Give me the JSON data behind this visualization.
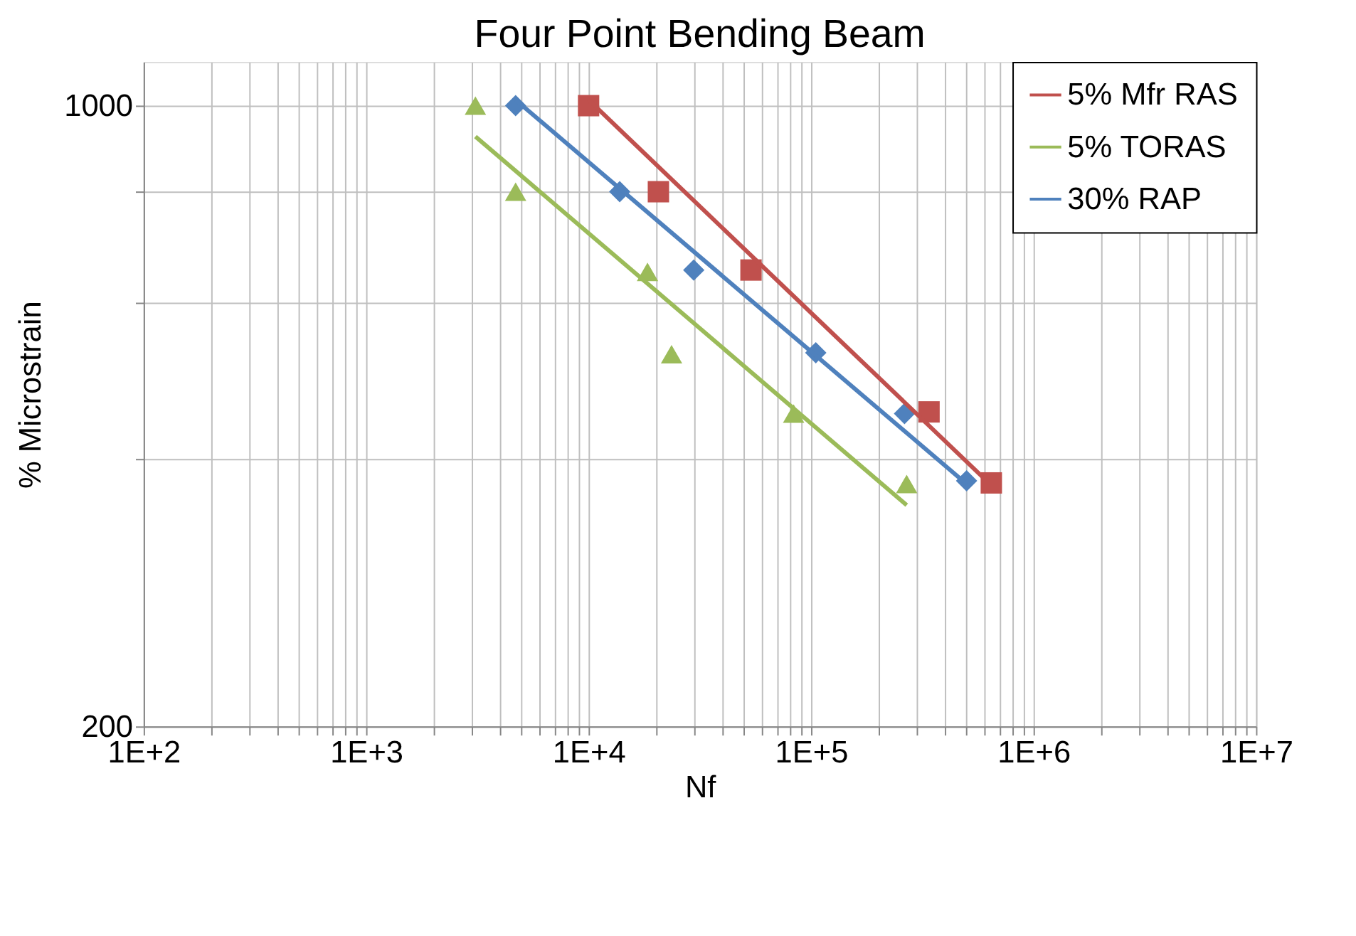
{
  "chart_data": {
    "type": "scatter",
    "title": "Four Point Bending Beam",
    "xlabel": "Nf",
    "ylabel": "% Microstrain",
    "log": "xy",
    "grid": true,
    "legend": "top right",
    "xlim": [
      100,
      10000000
    ],
    "xticks": [
      {
        "value": 100,
        "label": "1E+2"
      },
      {
        "value": 200,
        "label": null
      },
      {
        "value": 300,
        "label": null
      },
      {
        "value": 400,
        "label": null
      },
      {
        "value": 500,
        "label": null
      },
      {
        "value": 600,
        "label": null
      },
      {
        "value": 700,
        "label": null
      },
      {
        "value": 800,
        "label": null
      },
      {
        "value": 900,
        "label": null
      },
      {
        "value": 1000,
        "label": "1E+3"
      },
      {
        "value": 2000,
        "label": null
      },
      {
        "value": 3000,
        "label": null
      },
      {
        "value": 4000,
        "label": null
      },
      {
        "value": 5000,
        "label": null
      },
      {
        "value": 6000,
        "label": null
      },
      {
        "value": 7000,
        "label": null
      },
      {
        "value": 8000,
        "label": null
      },
      {
        "value": 9000,
        "label": null
      },
      {
        "value": 10000,
        "label": "1E+4"
      },
      {
        "value": 20000,
        "label": null
      },
      {
        "value": 30000,
        "label": null
      },
      {
        "value": 40000,
        "label": null
      },
      {
        "value": 50000,
        "label": null
      },
      {
        "value": 60000,
        "label": null
      },
      {
        "value": 70000,
        "label": null
      },
      {
        "value": 80000,
        "label": null
      },
      {
        "value": 90000,
        "label": null
      },
      {
        "value": 100000,
        "label": "1E+5"
      },
      {
        "value": 200000,
        "label": null
      },
      {
        "value": 300000,
        "label": null
      },
      {
        "value": 400000,
        "label": null
      },
      {
        "value": 500000,
        "label": null
      },
      {
        "value": 600000,
        "label": null
      },
      {
        "value": 700000,
        "label": null
      },
      {
        "value": 800000,
        "label": null
      },
      {
        "value": 900000,
        "label": null
      },
      {
        "value": 1000000,
        "label": "1E+6"
      },
      {
        "value": 2000000,
        "label": null
      },
      {
        "value": 3000000,
        "label": null
      },
      {
        "value": 4000000,
        "label": null
      },
      {
        "value": 5000000,
        "label": null
      },
      {
        "value": 6000000,
        "label": null
      },
      {
        "value": 7000000,
        "label": null
      },
      {
        "value": 8000000,
        "label": null
      },
      {
        "value": 9000000,
        "label": null
      },
      {
        "value": 10000000,
        "label": "1E+7"
      }
    ],
    "ylim": [
      200,
      1120
    ],
    "yticks": [
      200,
      {
        "value": 400,
        "label": null
      },
      {
        "value": 600,
        "label": null
      },
      {
        "value": 800,
        "label": null
      },
      1000
    ],
    "series": [
      {
        "name": "5% Mfr RAS",
        "type": "scatter",
        "marker": "square",
        "color": "#c0504d",
        "x": [
          10000,
          20600,
          53700,
          339000,
          646000
        ],
        "values": [
          1000,
          800,
          653,
          452,
          376
        ]
      },
      {
        "name": "5% TORAS",
        "type": "scatter",
        "marker": "triangle",
        "color": "#9bbb59",
        "x": [
          3100,
          4700,
          18400,
          23600,
          83500,
          269000
        ],
        "values": [
          1000,
          800,
          650,
          525,
          450,
          375
        ]
      },
      {
        "name": "30% RAP",
        "type": "scatter",
        "marker": "diamond",
        "color": "#4f81bd",
        "x": [
          4700,
          13800,
          29700,
          105000,
          263000,
          500000
        ],
        "values": [
          1000,
          800,
          653,
          527,
          450,
          378
        ]
      },
      {
        "type": "line",
        "color": "#c0504d",
        "x": [
          10000,
          589000
        ],
        "values": [
          1015,
          382
        ]
      },
      {
        "type": "line",
        "color": "#9bbb59",
        "x": [
          3100,
          269000
        ],
        "values": [
          923,
          355
        ]
      },
      {
        "type": "line",
        "color": "#4f81bd",
        "x": [
          4700,
          500000
        ],
        "values": [
          1015,
          375
        ]
      }
    ]
  }
}
